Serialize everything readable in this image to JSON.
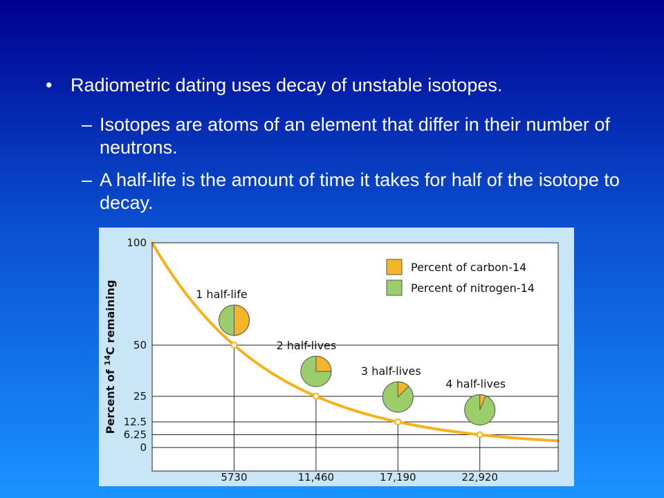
{
  "slide": {
    "bullet": "Radiometric dating uses decay of unstable isotopes.",
    "bullet_marker": "•",
    "sub_marker": "–",
    "sub_bullets": [
      "Isotopes are atoms of an element that differ in their number of neutrons.",
      "A half-life is the amount of time it takes for half of the isotope to decay."
    ]
  },
  "chart_data": {
    "type": "line",
    "ylabel_parts": [
      "Percent of ",
      "14",
      "C remaining"
    ],
    "xlabel": "",
    "x_ticks": [
      5730,
      11460,
      17190,
      22920
    ],
    "x_tick_labels": [
      "5730",
      "11,460",
      "17,190",
      "22,920"
    ],
    "y_ticks": [
      100,
      50,
      25,
      12.5,
      6.25,
      0
    ],
    "y_tick_labels": [
      "100",
      "50",
      "25",
      "12.5",
      "6.25",
      "0"
    ],
    "xlim": [
      0,
      28400
    ],
    "ylim": [
      0,
      100
    ],
    "half_life": 5730,
    "series": [
      {
        "x": [
          0,
          5730,
          11460,
          17190,
          22920,
          28400
        ],
        "values": [
          100,
          50,
          25,
          12.5,
          6.25,
          3.2
        ]
      }
    ],
    "markers": [
      {
        "x": 5730,
        "y": 50
      },
      {
        "x": 11460,
        "y": 25
      },
      {
        "x": 17190,
        "y": 12.5
      },
      {
        "x": 22920,
        "y": 6.25
      }
    ],
    "annotations": [
      {
        "label": "1 half-life",
        "carbon_fraction": 0.5
      },
      {
        "label": "2 half-lives",
        "carbon_fraction": 0.25
      },
      {
        "label": "3 half-lives",
        "carbon_fraction": 0.125
      },
      {
        "label": "4 half-lives",
        "carbon_fraction": 0.0625
      }
    ],
    "legend": [
      {
        "label": "Percent of carbon-14",
        "color": "#f5b52a"
      },
      {
        "label": "Percent of nitrogen-14",
        "color": "#9ccd6b"
      }
    ],
    "legend_position": "top-right",
    "grid": true,
    "colors": {
      "curve": "#f6b21c",
      "carbon": "#f5b52a",
      "nitrogen": "#9ccd6b",
      "plot_bg": "#ffffff",
      "panel_bg": "#c9e6f7"
    }
  }
}
